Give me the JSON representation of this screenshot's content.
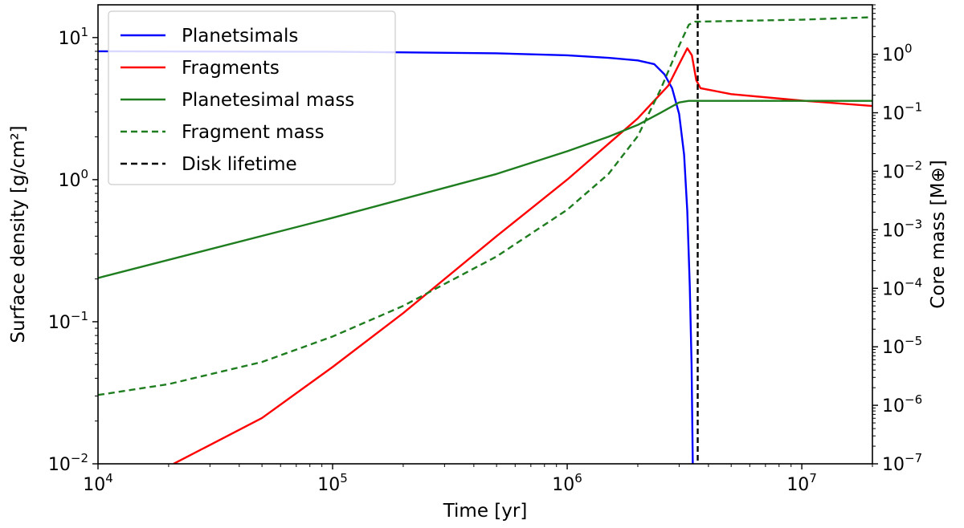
{
  "chart_data": {
    "type": "line",
    "title": "",
    "xlabel": "Time [yr]",
    "ylabel_left": "Surface density [g/cm²]",
    "ylabel_right": "Core mass [M⊕]",
    "xscale": "log",
    "yscale_left": "log",
    "yscale_right": "log",
    "xlim": [
      10000,
      20000000
    ],
    "ylim_left": [
      0.01,
      17
    ],
    "ylim_right": [
      1e-07,
      7
    ],
    "x_ticks": [
      {
        "value": 10000,
        "base": "10",
        "exp": "4"
      },
      {
        "value": 100000,
        "base": "10",
        "exp": "5"
      },
      {
        "value": 1000000,
        "base": "10",
        "exp": "6"
      },
      {
        "value": 10000000,
        "base": "10",
        "exp": "7"
      }
    ],
    "y_left_ticks": [
      {
        "value": 0.01,
        "base": "10",
        "exp": "−2"
      },
      {
        "value": 0.1,
        "base": "10",
        "exp": "−1"
      },
      {
        "value": 1,
        "base": "10",
        "exp": "0"
      },
      {
        "value": 10,
        "base": "10",
        "exp": "1"
      }
    ],
    "y_right_ticks": [
      {
        "value": 1e-07,
        "base": "10",
        "exp": "−7"
      },
      {
        "value": 1e-06,
        "base": "10",
        "exp": "−6"
      },
      {
        "value": 1e-05,
        "base": "10",
        "exp": "−5"
      },
      {
        "value": 0.0001,
        "base": "10",
        "exp": "−4"
      },
      {
        "value": 0.001,
        "base": "10",
        "exp": "−3"
      },
      {
        "value": 0.01,
        "base": "10",
        "exp": "−2"
      },
      {
        "value": 0.1,
        "base": "10",
        "exp": "−1"
      },
      {
        "value": 1,
        "base": "10",
        "exp": "0"
      }
    ],
    "legend_position": "top-left",
    "series": [
      {
        "name": "Planetsimals",
        "axis": "left",
        "color": "#0000ff",
        "dash": "solid",
        "points": [
          [
            10000,
            8.0
          ],
          [
            100000,
            7.95
          ],
          [
            500000,
            7.75
          ],
          [
            1000000,
            7.5
          ],
          [
            1500000,
            7.2
          ],
          [
            2000000,
            6.9
          ],
          [
            2350000,
            6.5
          ],
          [
            2600000,
            5.5
          ],
          [
            2800000,
            4.4
          ],
          [
            3000000,
            2.9
          ],
          [
            3150000,
            1.5
          ],
          [
            3250000,
            0.6
          ],
          [
            3330000,
            0.18
          ],
          [
            3390000,
            0.05
          ],
          [
            3430000,
            0.01
          ]
        ]
      },
      {
        "name": "Fragments",
        "axis": "left",
        "color": "#ff0000",
        "dash": "solid",
        "points": [
          [
            21000,
            0.01
          ],
          [
            50000,
            0.021
          ],
          [
            100000,
            0.048
          ],
          [
            200000,
            0.115
          ],
          [
            500000,
            0.4
          ],
          [
            1000000,
            1.0
          ],
          [
            2000000,
            2.7
          ],
          [
            2700000,
            4.6
          ],
          [
            3000000,
            6.5
          ],
          [
            3250000,
            8.4
          ],
          [
            3400000,
            7.5
          ],
          [
            3550000,
            5.0
          ],
          [
            3700000,
            4.4
          ],
          [
            5000000,
            4.0
          ],
          [
            10000000,
            3.6
          ],
          [
            20000000,
            3.3
          ]
        ]
      },
      {
        "name": "Planetesimal mass",
        "axis": "right",
        "color": "#1e7d1e",
        "dash": "solid",
        "points": [
          [
            10000,
            0.00015
          ],
          [
            100000,
            0.0016
          ],
          [
            500000,
            0.009
          ],
          [
            1000000,
            0.022
          ],
          [
            1500000,
            0.039
          ],
          [
            2000000,
            0.062
          ],
          [
            2500000,
            0.1
          ],
          [
            3000000,
            0.15
          ],
          [
            3300000,
            0.16
          ],
          [
            3500000,
            0.16
          ],
          [
            20000000,
            0.16
          ]
        ]
      },
      {
        "name": "Fragment mass",
        "axis": "right",
        "color": "#1e7d1e",
        "dash": "dashed",
        "points": [
          [
            10000,
            1.5e-06
          ],
          [
            20000,
            2.3e-06
          ],
          [
            50000,
            5.5e-06
          ],
          [
            100000,
            1.5e-05
          ],
          [
            200000,
            5e-05
          ],
          [
            500000,
            0.00035
          ],
          [
            1000000,
            0.0022
          ],
          [
            1500000,
            0.009
          ],
          [
            2000000,
            0.04
          ],
          [
            2500000,
            0.25
          ],
          [
            3000000,
            1.4
          ],
          [
            3300000,
            3.2
          ],
          [
            3500000,
            3.6
          ],
          [
            5000000,
            3.7
          ],
          [
            10000000,
            3.9
          ],
          [
            20000000,
            4.3
          ]
        ]
      },
      {
        "name": "Disk lifetime",
        "axis": "vline",
        "color": "#000000",
        "dash": "dashed",
        "x": 3600000
      }
    ]
  }
}
